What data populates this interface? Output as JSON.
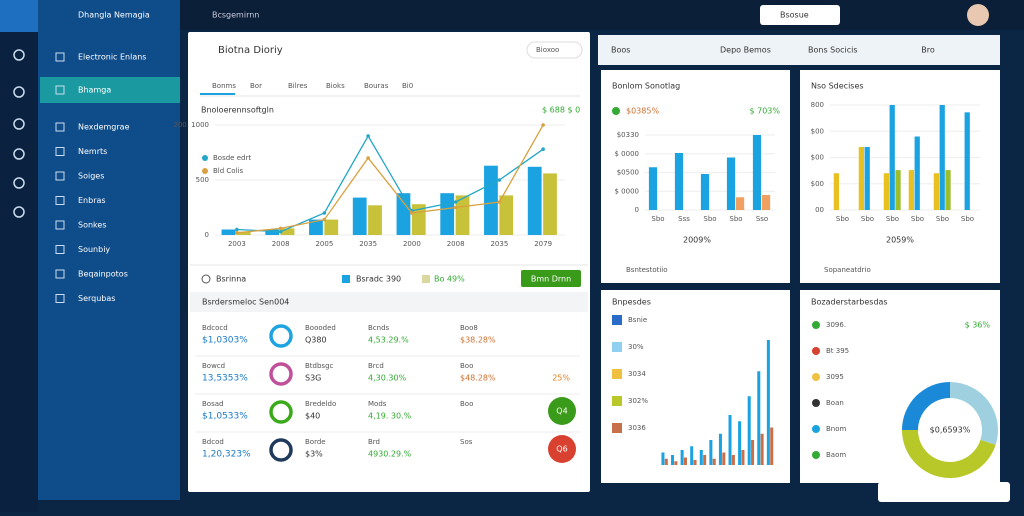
{
  "topbar": {
    "title": "Bcsgemirnn",
    "search": "Bsosue"
  },
  "sidebar": {
    "brand": "Dhangla Nemagia",
    "items": [
      "Electronic Enlans",
      "Bhamga",
      "Nexdemgrae",
      "Nemrts",
      "Soiges",
      "Enbras",
      "Sonkes",
      "Sounbiy",
      "Beqainpotos",
      "Serqubas"
    ]
  },
  "main": {
    "title": "Biotna Dioriy",
    "dropdown": "Bioxoo",
    "tabs": [
      "Bonms",
      "Bor",
      "Bilres",
      "Bioks",
      "Bouras",
      "Bi0"
    ],
    "chart": {
      "type": "bar",
      "title": "Bnoloerennsoftgln",
      "corner": "$ 688 $ 0",
      "categories": [
        "2003",
        "2008",
        "2005",
        "2035",
        "2000",
        "2008",
        "2035",
        "2079"
      ],
      "ylim": [
        0,
        1000
      ],
      "yticks": [
        0,
        500,
        {
          "value": 1000,
          "label": "200. 1000"
        }
      ],
      "series": [
        {
          "color": "#1aa3e0",
          "values": [
            50,
            50,
            140,
            340,
            380,
            380,
            630,
            620
          ]
        },
        {
          "color": "#c8c23a",
          "values": [
            30,
            60,
            140,
            270,
            280,
            360,
            360,
            560
          ]
        },
        {
          "name": "Bosde edrt",
          "color": "#22a7c8",
          "line": true,
          "values": [
            50,
            30,
            200,
            900,
            220,
            300,
            500,
            780
          ]
        },
        {
          "name": "Bld Colis",
          "color": "#d9a040",
          "line": true,
          "values": [
            20,
            60,
            140,
            700,
            200,
            250,
            300,
            1000
          ]
        }
      ]
    },
    "footer": {
      "label": "Bsrinna",
      "legend1": "Bsradc 390",
      "legend2": "Bo 49%",
      "button": "Bmn Drnn"
    },
    "section": "Bsrdersmeloc Sen004",
    "rows": [
      [
        "Bdcocd",
        "$1,0303%",
        "Boooded",
        "Q380",
        "Bcnds",
        "4,53.29.%",
        "Boo8",
        "$38.28%",
        ""
      ],
      [
        "Bowcd",
        "13,5353%",
        "Btdbsgc",
        "S3G",
        "Brcd",
        "4,30.30%",
        "Boo",
        "$48.28%",
        "25%"
      ],
      [
        "Bosad",
        "$1,0533%",
        "Bredeldo",
        "$40",
        "Mods",
        "4,19. 30.%",
        "Boo",
        "",
        "Q4"
      ],
      [
        "Bdcod",
        "1,20,323%",
        "Borde",
        "$3%",
        "Brd",
        "4930.29.%",
        "Sos",
        "",
        "Q6"
      ]
    ]
  },
  "right": {
    "header": [
      "Boos",
      "Depo Bemos",
      "Bons Socicis",
      "Bro"
    ],
    "card1": {
      "title": "Bonlom Sonotlag",
      "value": "$0385%",
      "side": "$ 703%",
      "foot": "2009%",
      "note": "Bsntestotiio",
      "chart": {
        "type": "bar",
        "categories": [
          "Sbo",
          "Sss",
          "Sbo",
          "Sbo",
          "Sso"
        ],
        "ylim": [
          0,
          100
        ],
        "yticks": [
          0,
          {
            "value": 25,
            "label": "$ 0000"
          },
          {
            "value": 50,
            "label": "$0500"
          },
          {
            "value": 75,
            "label": "$ 0000"
          },
          {
            "value": 100,
            "label": "$0330"
          }
        ],
        "series": [
          {
            "color": "#1aa3e0",
            "values": [
              57,
              76,
              48,
              70,
              100
            ]
          },
          {
            "color": "#f0a060",
            "values": [
              0,
              0,
              0,
              17,
              20
            ]
          }
        ]
      }
    },
    "card2": {
      "title": "Nso Sdecises",
      "foot": "2059%",
      "note": "Sopaneatdrio",
      "chart": {
        "type": "bar",
        "categories": [
          "Sbo",
          "Sbo",
          "Sbo",
          "Sbo",
          "Sbo",
          "Sbo"
        ],
        "ylim": [
          0,
          100
        ],
        "yticks": [
          {
            "value": 0,
            "label": "00"
          },
          {
            "value": 25,
            "label": "$00"
          },
          {
            "value": 50,
            "label": "$00"
          },
          {
            "value": 75,
            "label": "$00"
          },
          {
            "value": 100,
            "label": "800"
          }
        ],
        "series": [
          {
            "color": "#e8c020",
            "values": [
              35,
              60,
              35,
              38,
              35,
              0
            ]
          },
          {
            "color": "#1aa3e0",
            "values": [
              0,
              60,
              100,
              70,
              100,
              93
            ]
          },
          {
            "color": "#9bbd2e",
            "values": [
              0,
              0,
              38,
              0,
              38,
              0
            ]
          }
        ]
      }
    },
    "card3": {
      "title": "Bnpesdes",
      "legend": [
        "Bsnie",
        "30%",
        "3034",
        "302%",
        "3036"
      ],
      "chart": {
        "type": "bar",
        "categories": [
          "",
          "",
          "",
          "",
          "",
          "",
          "",
          "",
          "",
          "",
          "",
          ""
        ],
        "ylim": [
          0,
          100
        ],
        "yticks": [],
        "series": [
          {
            "color": "#1aa3e0",
            "values": [
              10,
              8,
              12,
              15,
              12,
              20,
              25,
              40,
              35,
              55,
              75,
              100
            ]
          },
          {
            "color": "#c8704a",
            "values": [
              5,
              3,
              6,
              4,
              8,
              5,
              10,
              8,
              12,
              20,
              25,
              30
            ]
          }
        ]
      }
    },
    "card4": {
      "title": "Bozaderstarbesdas",
      "items": [
        "3096.",
        "Bt 395",
        "3095",
        "Boan",
        "Bnom",
        "Baom"
      ],
      "side": "$ 36%",
      "center": "$0,6593%",
      "chart": {
        "type": "pie",
        "values": [
          30,
          45,
          25
        ],
        "colors": [
          "#9fd0e0",
          "#b8c828",
          "#1a8ad8"
        ]
      }
    }
  }
}
